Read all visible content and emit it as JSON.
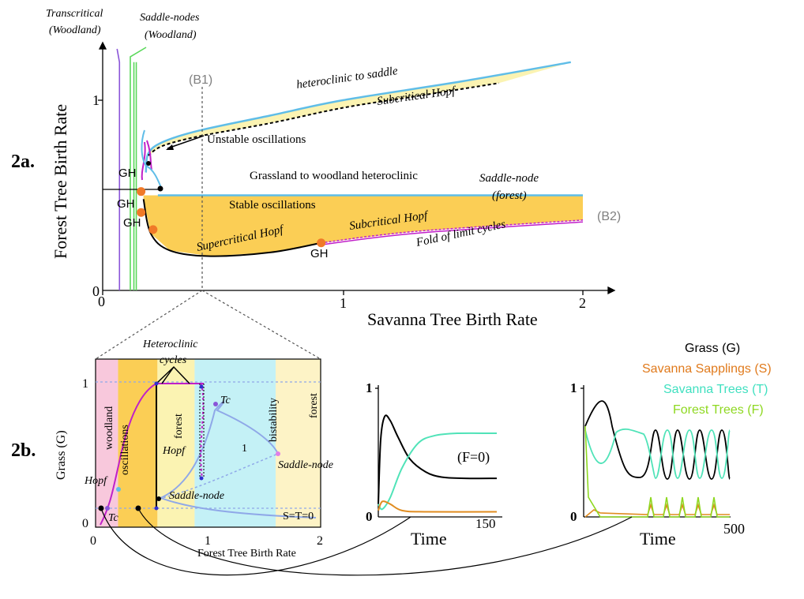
{
  "panel_labels": {
    "a": "2a.",
    "b": "2b."
  },
  "colors": {
    "yellow_fill": "#fbce55",
    "pale_yellow": "#fbf3b2",
    "cyan": "#5fbde8",
    "black": "#000000",
    "magenta": "#c020c8",
    "orange": "#f07a28",
    "purple": "#8a55d8",
    "green": "#5ad85a",
    "gray": "#808080",
    "light_blue": "#8fa8e8",
    "pink": "#f8c8dc",
    "aqua": "#c4f1f6",
    "cream": "#fdf3c6",
    "teal": "#50e3b8",
    "lime": "#8ed820",
    "tan": "#e08c20"
  },
  "chart_data": [
    {
      "id": "2a",
      "type": "line",
      "xlabel": "Savanna Tree Birth Rate",
      "ylabel": "Forest Tree Birth Rate",
      "xlim": [
        0,
        2.05
      ],
      "ylim": [
        0,
        1.27
      ],
      "xticks": [
        "0",
        "1",
        "2"
      ],
      "yticks": [
        "0",
        "1"
      ],
      "top_labels": {
        "transcritical": [
          "Transcritical",
          "(Woodland)"
        ],
        "saddle_nodes": [
          "Saddle-nodes",
          "(Woodland)"
        ]
      },
      "annotations": {
        "b1": "(B1)",
        "b2": "(B2)",
        "heteroclinic_to_saddle": "heteroclinic to saddle",
        "subcritical_hopf_upper": "Subcritical Hopf",
        "unstable_oscillations": "Unstable oscillations",
        "grassland_to_woodland": "Grassland to woodland heteroclinic",
        "saddle_node": "Saddle-node",
        "forest_paren": "(forest)",
        "stable_oscillations": "Stable oscillations",
        "subcritical_hopf_lower": "Subcritical Hopf",
        "supercritical_hopf": "Supercritical Hopf",
        "fold_limit_cycles": "Fold of limit cycles",
        "gh": "GH"
      },
      "gh_points": [
        [
          0.16,
          0.52
        ],
        [
          0.16,
          0.41
        ],
        [
          0.21,
          0.32
        ],
        [
          0.91,
          0.25
        ]
      ],
      "series": [
        {
          "key": "transcritical",
          "x": [
            0.06,
            0.07,
            0.07
          ],
          "y": [
            1.27,
            1.2,
            0
          ]
        },
        {
          "key": "saddle_node_woodland_a",
          "x": [
            0.13,
            0.13
          ],
          "y": [
            1.2,
            0
          ]
        },
        {
          "key": "saddle_node_woodland_b",
          "x": [
            0.14,
            0.14
          ],
          "y": [
            1.2,
            0
          ]
        },
        {
          "key": "heteroclinic_to_saddle",
          "x": [
            0.18,
            0.19,
            0.25,
            0.4,
            0.7,
            1.0,
            1.5,
            1.95
          ],
          "y": [
            0.62,
            0.72,
            0.78,
            0.84,
            0.92,
            1.0,
            1.1,
            1.2
          ]
        },
        {
          "key": "subcritical_hopf_upper",
          "x": [
            0.19,
            0.25,
            0.4,
            0.7,
            1.0,
            1.3,
            1.65
          ],
          "y": [
            0.71,
            0.76,
            0.81,
            0.88,
            0.96,
            1.02,
            1.09
          ]
        },
        {
          "key": "grassland_to_woodland_heteroclinic",
          "x": [
            0.23,
            2.0
          ],
          "y": [
            0.5,
            0.5
          ]
        },
        {
          "key": "supercritical_hopf",
          "x": [
            0.17,
            0.2,
            0.28,
            0.45,
            0.7,
            0.91
          ],
          "y": [
            0.48,
            0.3,
            0.21,
            0.18,
            0.2,
            0.25
          ]
        },
        {
          "key": "subcritical_hopf_lower",
          "x": [
            0.91,
            1.3,
            2.0
          ],
          "y": [
            0.25,
            0.31,
            0.37
          ]
        },
        {
          "key": "fold_of_limit_cycles",
          "x": [
            0.91,
            1.3,
            2.0
          ],
          "y": [
            0.24,
            0.3,
            0.36
          ]
        }
      ],
      "regions": [
        {
          "key": "stable_oscillations",
          "color": "yellow_fill"
        },
        {
          "key": "unstable_oscillations",
          "color": "pale_yellow"
        }
      ]
    },
    {
      "id": "2b-bifurcation",
      "type": "line",
      "xlabel": "Forest Tree Birth Rate",
      "ylabel": "Grass (G)",
      "xlim": [
        0,
        2
      ],
      "ylim": [
        0,
        1
      ],
      "xticks": [
        "0",
        "1",
        "2"
      ],
      "yticks": [
        "0",
        "1"
      ],
      "region_labels": [
        "woodland",
        "oscillations",
        "forest",
        "bistability",
        "forest"
      ],
      "annotations": {
        "heteroclinic_cycles": [
          "Heteroclinic",
          "cycles"
        ],
        "tc": "Tc",
        "hopf": "Hopf",
        "saddle_node": "Saddle-node",
        "one": "1",
        "s_t_zero": "S=T=0"
      },
      "regions": [
        {
          "label": "woodland",
          "x": [
            0.0,
            0.2
          ],
          "color": "pink"
        },
        {
          "label": "oscillations",
          "x": [
            0.2,
            0.55
          ],
          "color": "yellow_fill"
        },
        {
          "label": "forest",
          "x": [
            0.55,
            0.88
          ],
          "color": "pale_yellow"
        },
        {
          "label": "bistability",
          "x": [
            0.88,
            1.6
          ],
          "color": "aqua"
        },
        {
          "label": "forest",
          "x": [
            1.6,
            2.0
          ],
          "color": "cream"
        }
      ],
      "series": [
        {
          "key": "stable_branch",
          "x": [
            0.05,
            0.15,
            0.22,
            0.35,
            0.45,
            0.5,
            0.55
          ],
          "y": [
            0.0,
            0.1,
            0.6,
            0.95,
            1.0,
            1.0,
            1.0
          ]
        },
        {
          "key": "forest_branch",
          "x": [
            0.55,
            0.7,
            0.85,
            1.05,
            1.3,
            1.6
          ],
          "y": [
            0.15,
            0.27,
            0.45,
            0.78,
            0.55,
            0.38
          ]
        },
        {
          "key": "lower_branch",
          "x": [
            0.55,
            0.9,
            1.2,
            1.6,
            2.0
          ],
          "y": [
            0.12,
            0.09,
            0.07,
            0.06,
            0.05
          ]
        }
      ]
    },
    {
      "id": "2b-timeseries-1",
      "type": "line",
      "xlabel": "Time",
      "annotation": "(F=0)",
      "xlim": [
        0,
        150
      ],
      "ylim": [
        0,
        1
      ],
      "xticks": [
        "150"
      ],
      "yticks": [
        "0",
        "1"
      ],
      "series": [
        {
          "name": "Grass (G)",
          "color": "black",
          "x": [
            0,
            3,
            8,
            15,
            25,
            40,
            60,
            80,
            110,
            150
          ],
          "y": [
            0.1,
            0.6,
            0.78,
            0.75,
            0.62,
            0.45,
            0.35,
            0.31,
            0.3,
            0.3
          ]
        },
        {
          "name": "Savanna Trees (T)",
          "color": "teal",
          "x": [
            0,
            5,
            15,
            30,
            50,
            70,
            100,
            150
          ],
          "y": [
            0.1,
            0.06,
            0.15,
            0.38,
            0.57,
            0.63,
            0.65,
            0.65
          ]
        },
        {
          "name": "Savanna Sapplings (S)",
          "color": "tan",
          "x": [
            0,
            5,
            15,
            30,
            60,
            150
          ],
          "y": [
            0.05,
            0.12,
            0.1,
            0.05,
            0.04,
            0.04
          ]
        }
      ]
    },
    {
      "id": "2b-timeseries-2",
      "type": "line",
      "xlabel": "Time",
      "xlim": [
        0,
        500
      ],
      "ylim": [
        0,
        1
      ],
      "xticks": [
        "500"
      ],
      "yticks": [
        "0",
        "1"
      ],
      "legend": [
        "Grass (G)",
        "Savanna Sapplings (S)",
        "Savanna Trees (T)",
        "Forest Trees (F)"
      ],
      "series": [
        {
          "name": "Grass (G)",
          "color": "black"
        },
        {
          "name": "Savanna Sapplings (S)",
          "color": "tan"
        },
        {
          "name": "Savanna Trees (T)",
          "color": "teal"
        },
        {
          "name": "Forest Trees (F)",
          "color": "lime"
        }
      ]
    }
  ]
}
